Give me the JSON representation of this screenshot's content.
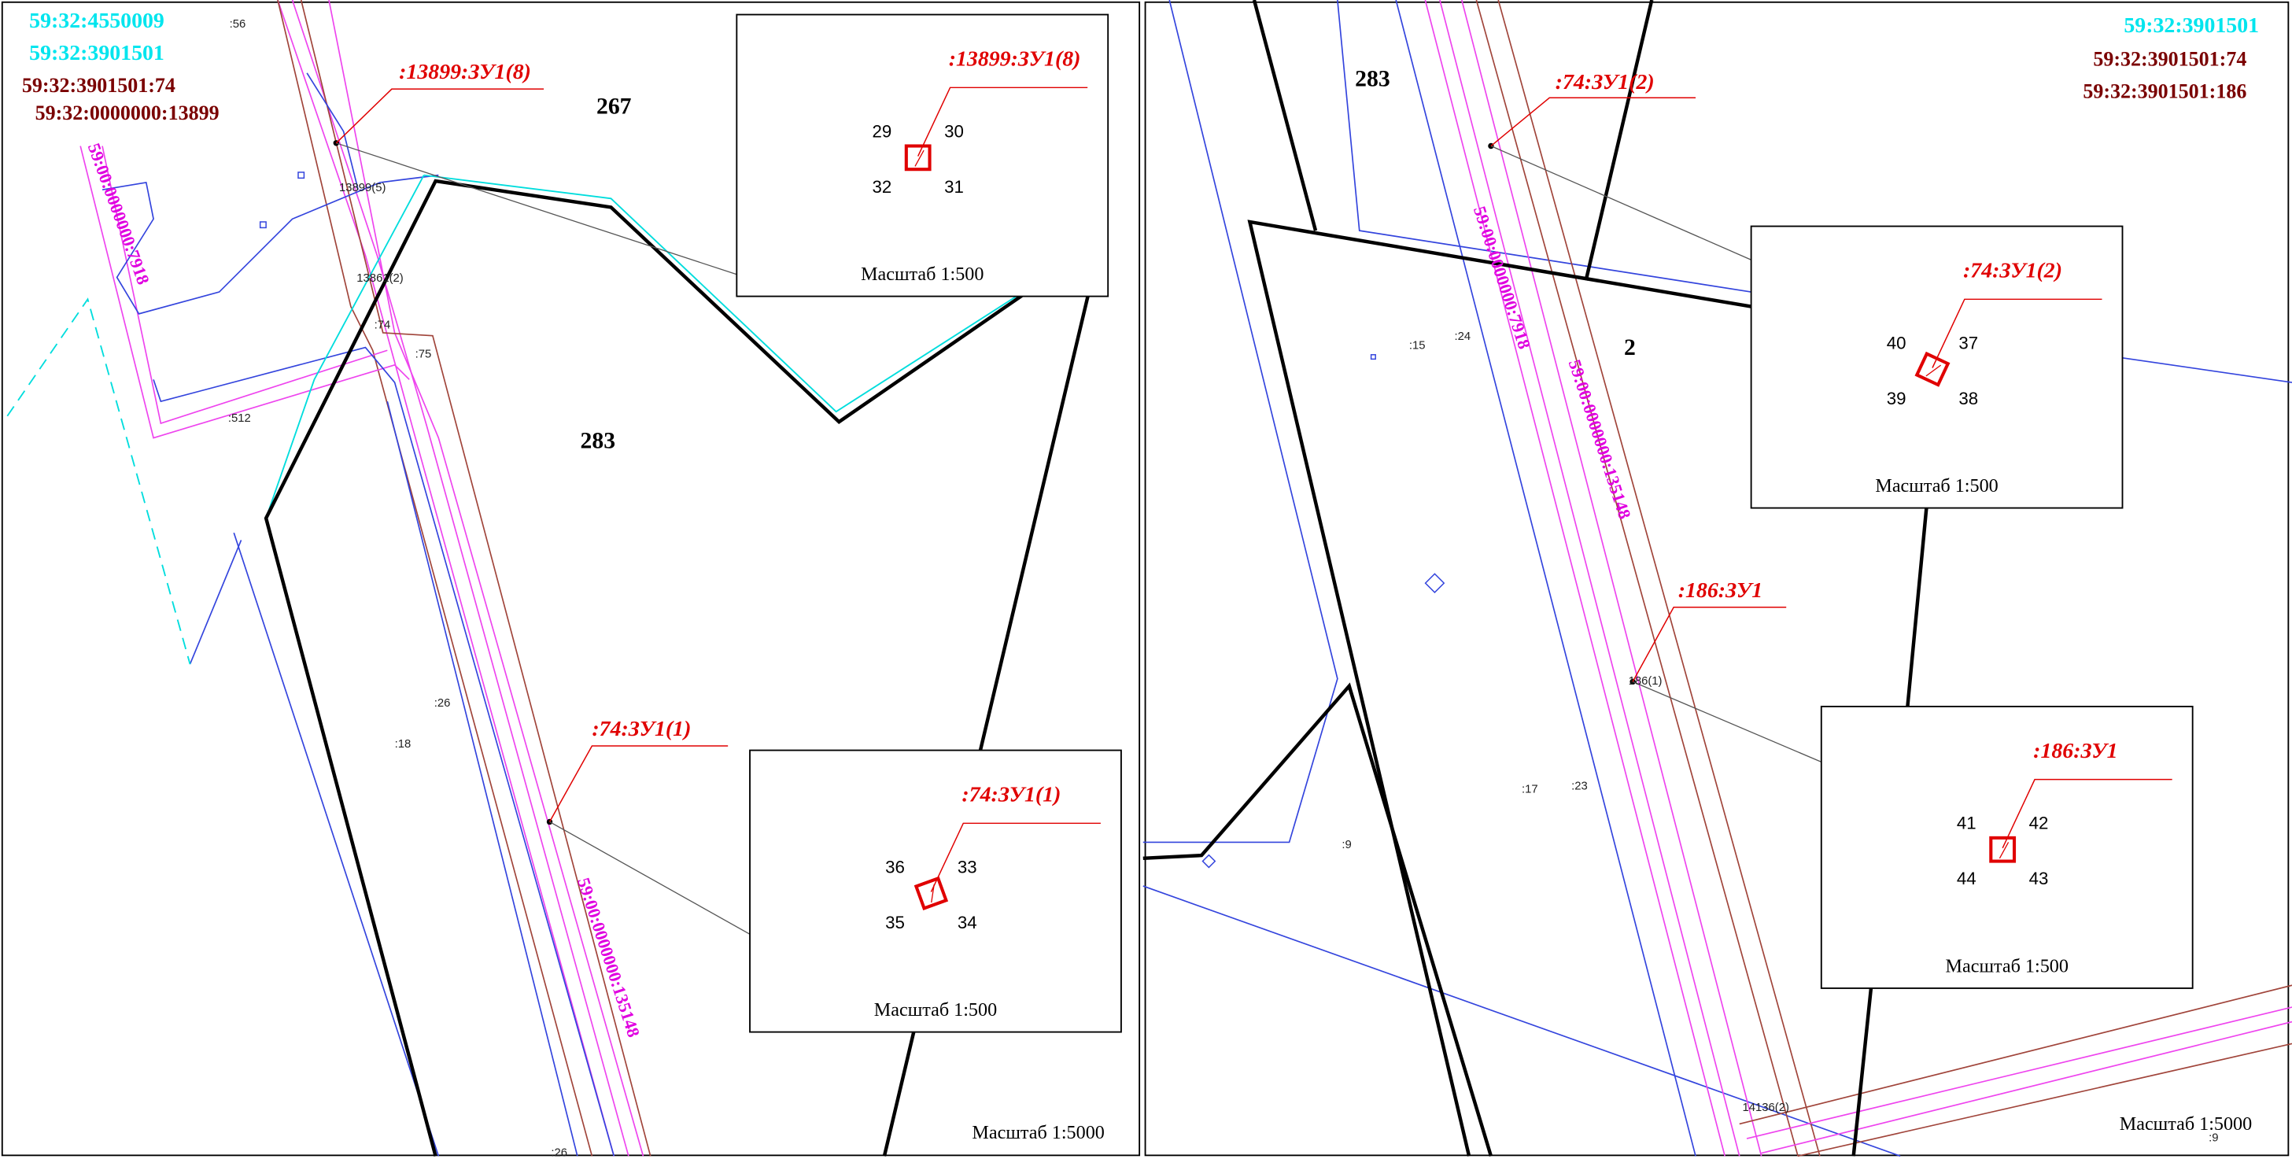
{
  "left_map": {
    "labels": [
      "59:32:4550009",
      "59:32:3901501",
      "59:32:3901501:74",
      "59:32:0000000:13899",
      ":56",
      ":13899:ЗУ1(8)",
      "267",
      "13899(5)",
      "13861(2)",
      ":74",
      ":75",
      ":512",
      "283",
      "59:00:0000000:7918",
      ":26",
      ":18",
      ":74:ЗУ1(1)",
      "59:00:0000000:135148",
      ":26"
    ],
    "insets": [
      {
        "label": ":13899:ЗУ1(8)",
        "points": [
          29,
          30,
          32,
          31
        ],
        "scale": "Масштаб 1:500"
      },
      {
        "label": ":74:ЗУ1(1)",
        "points": [
          36,
          33,
          35,
          34
        ],
        "scale": "Масштаб 1:500"
      }
    ],
    "scale": "Масштаб 1:5000"
  },
  "right_map": {
    "labels": [
      "59:32:3901501",
      "59:32:3901501:74",
      "59:32:3901501:186",
      "283",
      ":74:ЗУ1(2)",
      "59:00:0000000:7918",
      "2",
      ":15",
      ":24",
      "59:00:0000000:135148",
      ":186:ЗУ1",
      "186(1)",
      ":17",
      ":23",
      ":9",
      "14136(2)",
      ":9"
    ],
    "insets": [
      {
        "label": ":74:ЗУ1(2)",
        "points": [
          40,
          37,
          39,
          38
        ],
        "scale": "Масштаб 1:500"
      },
      {
        "label": ":186:ЗУ1",
        "points": [
          41,
          42,
          44,
          43
        ],
        "scale": "Масштаб 1:500"
      }
    ],
    "scale": "Масштаб 1:5000"
  }
}
